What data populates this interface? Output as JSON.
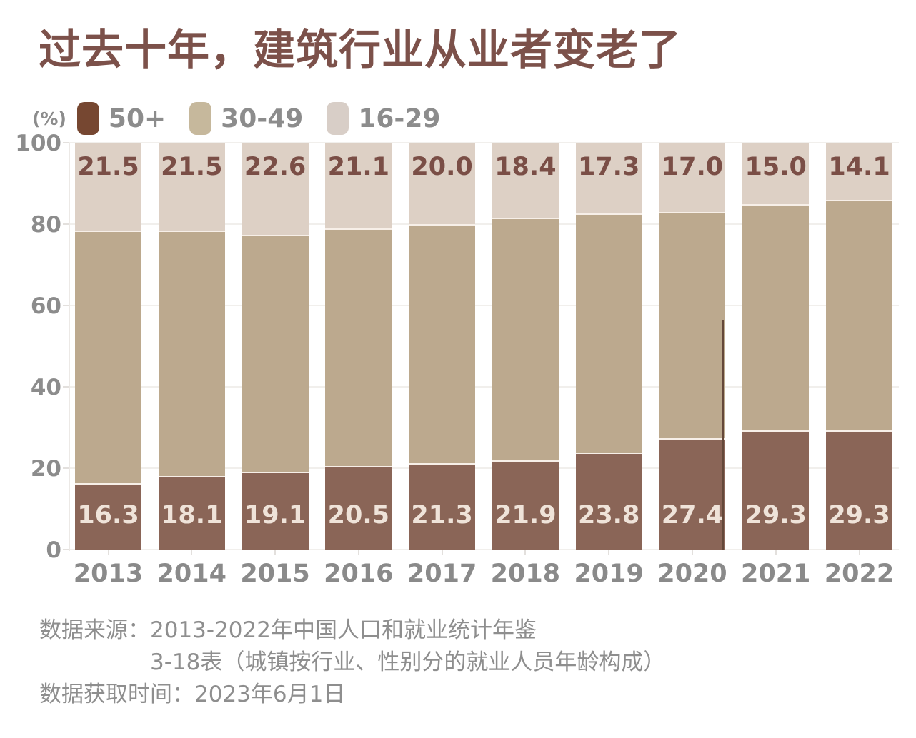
{
  "title": "过去十年，建筑行业从业者变老了",
  "legend": {
    "unit": "(%)",
    "items": [
      {
        "label": "50+",
        "color": "#764731"
      },
      {
        "label": "30-49",
        "color": "#C6B89C"
      },
      {
        "label": "16-29",
        "color": "#D8CEC7"
      }
    ]
  },
  "chart_data": {
    "type": "bar",
    "stacked": true,
    "title": "过去十年，建筑行业从业者变老了",
    "ylabel": "(%)",
    "xlabel": "",
    "categories": [
      "2013",
      "2014",
      "2015",
      "2016",
      "2017",
      "2018",
      "2019",
      "2020",
      "2021",
      "2022"
    ],
    "series": [
      {
        "name": "50+",
        "color": "#8A6557",
        "values": [
          16.3,
          18.1,
          19.1,
          20.5,
          21.3,
          21.9,
          23.8,
          27.4,
          29.3,
          29.3
        ],
        "labels": [
          "16.3",
          "18.1",
          "19.1",
          "20.5",
          "21.3",
          "21.9",
          "23.8",
          "27.4",
          "29.3",
          "29.3"
        ],
        "label_color": "#EFE3D9",
        "label_position": "inside-bottom"
      },
      {
        "name": "30-49",
        "color": "#BCA98E",
        "values": [
          62.2,
          60.4,
          58.3,
          58.4,
          58.7,
          59.7,
          58.9,
          55.6,
          55.7,
          56.6
        ],
        "labels": null,
        "label_color": null,
        "label_position": "none"
      },
      {
        "name": "16-29",
        "color": "#DDD0C5",
        "values": [
          21.5,
          21.5,
          22.6,
          21.1,
          20.0,
          18.4,
          17.3,
          17.0,
          15.0,
          14.1
        ],
        "labels": [
          "21.5",
          "21.5",
          "22.6",
          "21.1",
          "20.0",
          "18.4",
          "17.3",
          "17.0",
          "15.0",
          "14.1"
        ],
        "label_color": "#7A4E46",
        "label_position": "inside-top"
      }
    ],
    "yticks": [
      0,
      20,
      40,
      60,
      80,
      100
    ],
    "ylim": [
      0,
      100
    ],
    "grid": true,
    "legend_position": "top-left"
  },
  "source": {
    "source_label": "数据来源：",
    "source_line1": "2013-2022年中国人口和就业统计年鉴",
    "source_line2": "3-18表（城镇按行业、性别分的就业人员年龄构成）",
    "time_label": "数据获取时间：",
    "time_value": "2023年6月1日"
  },
  "colors": {
    "title_text": "#7C514A",
    "axis_text": "#8C8C8C",
    "year_text": "#8A8A8A",
    "source_text": "#8E8E8E",
    "grid_line": "#F1EFEC"
  }
}
